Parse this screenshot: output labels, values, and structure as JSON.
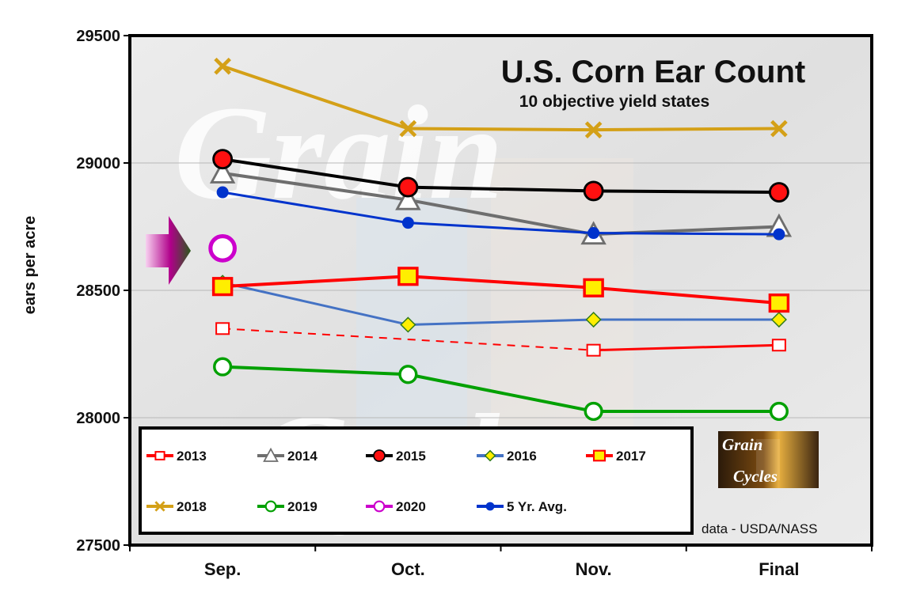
{
  "chart_data": {
    "type": "line",
    "title": "U.S. Corn Ear Count",
    "subtitle": "10 objective yield states",
    "ylabel": "ears per acre",
    "xlabel": "",
    "ylim": [
      27500,
      29500
    ],
    "yticks": [
      27500,
      28000,
      28500,
      29000,
      29500
    ],
    "categories": [
      "Sep.",
      "Oct.",
      "Nov.",
      "Final"
    ],
    "grid": true,
    "legend_position": "bottom-left",
    "series": [
      {
        "name": "2013",
        "color": "#ff0000",
        "marker": "hollow-square",
        "dashed_segment": [
          0,
          2
        ],
        "values": [
          28350,
          null,
          28265,
          28285
        ]
      },
      {
        "name": "2014",
        "color": "#6e6e6e",
        "marker": "hollow-triangle",
        "values": [
          28960,
          28855,
          28720,
          28750
        ]
      },
      {
        "name": "2015",
        "color": "#000000",
        "marker": "red-circle",
        "values": [
          29015,
          28905,
          28890,
          28885
        ]
      },
      {
        "name": "2016",
        "color": "#4472c4",
        "marker": "yellow-diamond",
        "values": [
          28530,
          28365,
          28385,
          28385
        ]
      },
      {
        "name": "2017",
        "color": "#ff0000",
        "marker": "yellow-square",
        "values": [
          28515,
          28555,
          28510,
          28450
        ]
      },
      {
        "name": "2018",
        "color": "#d4a017",
        "marker": "x",
        "values": [
          29380,
          29135,
          29130,
          29135
        ]
      },
      {
        "name": "2019",
        "color": "#00a000",
        "marker": "hollow-circle",
        "values": [
          28200,
          28170,
          28025,
          28025
        ]
      },
      {
        "name": "2020",
        "color": "#cc00cc",
        "marker": "hollow-circle",
        "values": [
          28665,
          null,
          null,
          null
        ]
      },
      {
        "name": "5 Yr. Avg.",
        "color": "#0033cc",
        "marker": "filled-circle",
        "values": [
          28885,
          28765,
          28725,
          28720
        ]
      }
    ]
  },
  "watermark": {
    "line1": "Grain",
    "line2": "Cycles"
  },
  "logo": {
    "line1": "Grain",
    "line2": "Cycles"
  },
  "source_note": "data - USDA/NASS",
  "colors": {
    "arrow": "#a0007a",
    "background": "#e4e4e4"
  }
}
